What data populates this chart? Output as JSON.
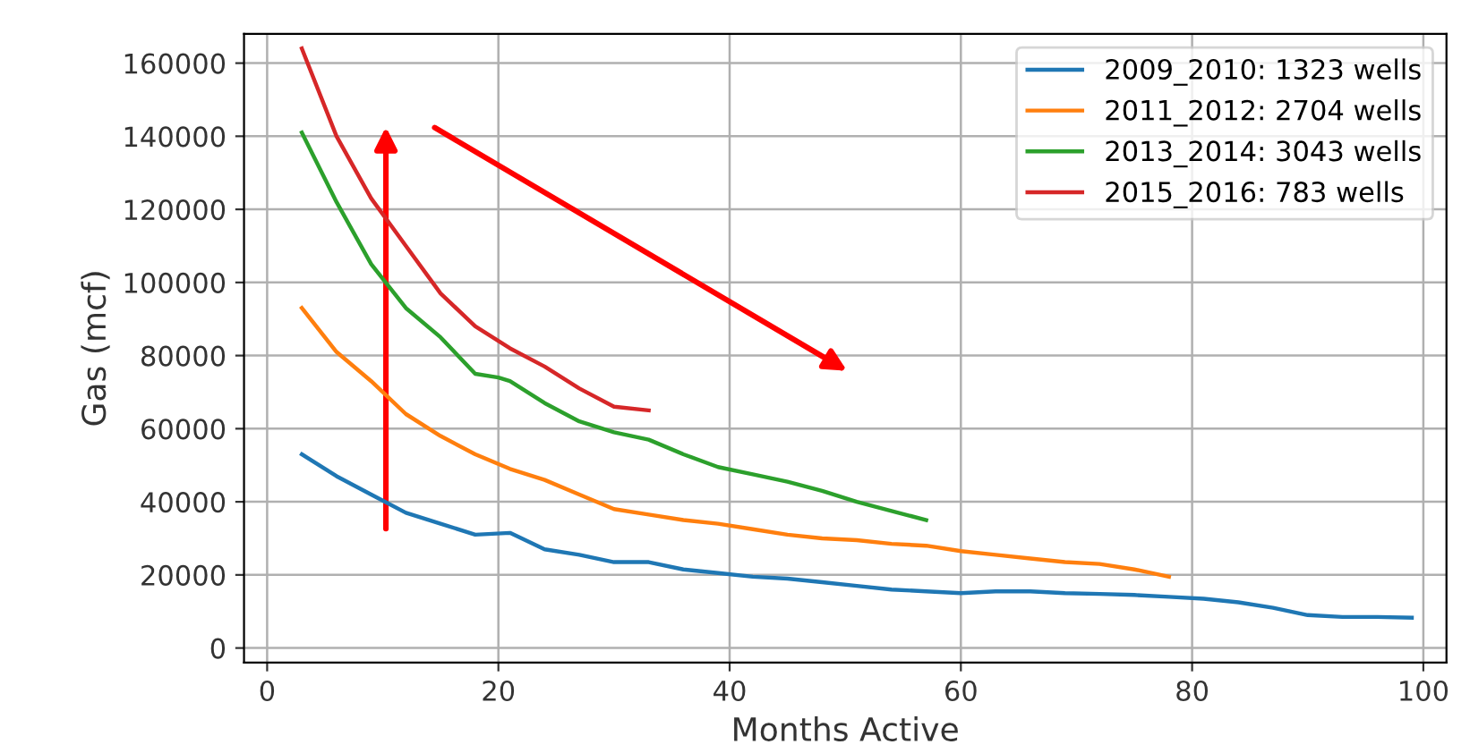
{
  "chart_data": {
    "type": "line",
    "xlabel": "Months Active",
    "ylabel": "Gas (mcf)",
    "xlim": [
      -2,
      102
    ],
    "ylim": [
      -4000,
      168000
    ],
    "xticks": [
      0,
      20,
      40,
      60,
      80,
      100
    ],
    "yticks": [
      0,
      20000,
      40000,
      60000,
      80000,
      100000,
      120000,
      140000,
      160000
    ],
    "grid": true,
    "legend": "top right",
    "series": [
      {
        "name": "2009_2010: 1323 wells",
        "color": "#1f77b4",
        "x": [
          3,
          6,
          9,
          12,
          15,
          18,
          21,
          24,
          27,
          30,
          33,
          36,
          39,
          42,
          45,
          48,
          51,
          54,
          57,
          60,
          63,
          66,
          69,
          72,
          75,
          78,
          81,
          84,
          87,
          90,
          93,
          96,
          99
        ],
        "values": [
          53000,
          47000,
          42000,
          37000,
          34000,
          31000,
          31500,
          27000,
          25500,
          23500,
          23500,
          21500,
          20500,
          19500,
          19000,
          18000,
          17000,
          16000,
          15500,
          15000,
          15500,
          15500,
          15000,
          14800,
          14500,
          14000,
          13500,
          12500,
          11000,
          9000,
          8500,
          8500,
          8300
        ]
      },
      {
        "name": "2011_2012: 2704 wells",
        "color": "#ff7f0e",
        "x": [
          3,
          6,
          9,
          12,
          15,
          18,
          21,
          24,
          27,
          30,
          33,
          36,
          39,
          42,
          45,
          48,
          51,
          54,
          57,
          60,
          63,
          66,
          69,
          72,
          75,
          78
        ],
        "values": [
          93000,
          81000,
          73000,
          64000,
          58000,
          53000,
          49000,
          46000,
          42000,
          38000,
          36500,
          35000,
          34000,
          32500,
          31000,
          30000,
          29500,
          28500,
          28000,
          26500,
          25500,
          24500,
          23500,
          23000,
          21500,
          19500
        ]
      },
      {
        "name": "2013_2014: 3043 wells",
        "color": "#2ca02c",
        "x": [
          3,
          6,
          9,
          12,
          15,
          18,
          20,
          21,
          24,
          27,
          30,
          33,
          36,
          39,
          42,
          45,
          48,
          51,
          54,
          57
        ],
        "values": [
          141000,
          122000,
          105000,
          93000,
          85000,
          75000,
          74000,
          73000,
          67000,
          62000,
          59000,
          57000,
          53000,
          49500,
          47500,
          45500,
          43000,
          40000,
          37500,
          35000
        ]
      },
      {
        "name": "2015_2016: 783 wells",
        "color": "#d62728",
        "x": [
          3,
          6,
          9,
          12,
          15,
          18,
          21,
          24,
          27,
          30,
          33
        ],
        "values": [
          164000,
          140000,
          123000,
          110000,
          97000,
          88000,
          82000,
          77000,
          71000,
          66000,
          65000
        ]
      }
    ]
  }
}
